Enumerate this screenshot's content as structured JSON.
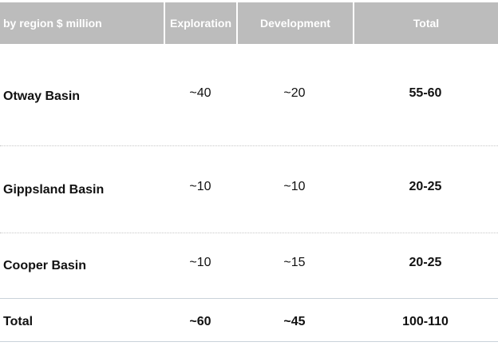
{
  "header": {
    "region": "by region $ million",
    "exploration": "Exploration",
    "development": "Development",
    "total": "Total"
  },
  "rows": [
    {
      "name": "Otway Basin",
      "exploration": "~40",
      "development": "~20",
      "total": "55-60"
    },
    {
      "name": "Gippsland Basin",
      "exploration": "~10",
      "development": "~10",
      "total": "20-25"
    },
    {
      "name": "Cooper Basin",
      "exploration": "~10",
      "development": "~15",
      "total": "20-25"
    }
  ],
  "total_row": {
    "name": "Total",
    "exploration": "~60",
    "development": "~45",
    "total": "100-110"
  }
}
